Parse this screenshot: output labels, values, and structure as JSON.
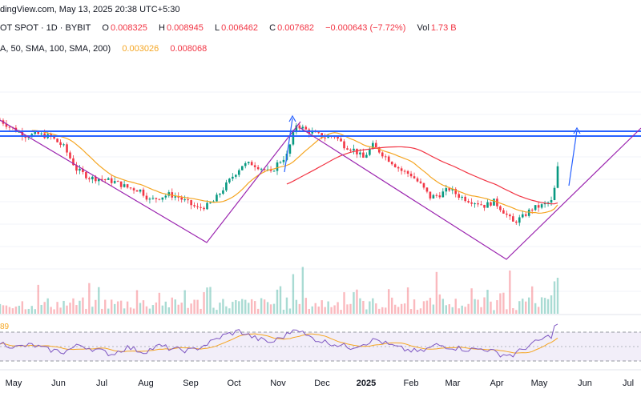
{
  "header": {
    "line1": "dingView.com, May 13, 2025 20:38 UTC+5:30",
    "symbol": "OT SPOT · 1D · BYBIT",
    "o_label": "O",
    "o_value": "0.008325",
    "h_label": "H",
    "h_value": "0.008945",
    "l_label": "L",
    "l_value": "0.006462",
    "c_label": "C",
    "c_value": "0.007682",
    "change": "−0.000643 (−7.72%)",
    "vol_label": "Vol",
    "vol_value": "1.73 B",
    "ma_params": "A, 50, SMA, 100, SMA, 200)",
    "ma1_value": "0.003026",
    "ma2_value": "0.008068"
  },
  "rsi": {
    "label": "89"
  },
  "colors": {
    "up": "#089981",
    "down": "#f23645",
    "ma50": "#f5a623",
    "ma200": "#f23645",
    "resistance": "#2962ff",
    "trendline": "#9c27b0",
    "rsi": "#7e57c2",
    "rsi_ma": "#f5a623"
  },
  "chart_data": {
    "type": "candlestick",
    "x": [
      "May",
      "Jun",
      "Jul",
      "Aug",
      "Sep",
      "Oct",
      "Nov",
      "Dec",
      "2025",
      "Feb",
      "Mar",
      "Apr",
      "May",
      "Jun",
      "Jul"
    ],
    "bold_ticks": [
      "2025"
    ],
    "ohlc": {
      "O": 0.008325,
      "H": 0.008945,
      "L": 0.006462,
      "C": 0.007682,
      "change": -0.000643,
      "change_pct": -7.72
    },
    "series": [
      {
        "name": "SMA 100",
        "last": 0.003026
      },
      {
        "name": "SMA 200",
        "last": 0.008068
      }
    ],
    "close_path": [
      [
        0,
        0.97
      ],
      [
        4,
        0.91
      ],
      [
        8,
        0.86
      ],
      [
        12,
        0.87
      ],
      [
        16,
        0.85
      ],
      [
        20,
        0.78
      ],
      [
        24,
        0.62
      ],
      [
        28,
        0.56
      ],
      [
        32,
        0.55
      ],
      [
        36,
        0.53
      ],
      [
        40,
        0.49
      ],
      [
        44,
        0.47
      ],
      [
        47,
        0.4
      ],
      [
        50,
        0.42
      ],
      [
        53,
        0.44
      ],
      [
        56,
        0.42
      ],
      [
        59,
        0.38
      ],
      [
        62,
        0.34
      ],
      [
        65,
        0.36
      ],
      [
        67,
        0.39
      ],
      [
        70,
        0.48
      ],
      [
        73,
        0.57
      ],
      [
        76,
        0.65
      ],
      [
        79,
        0.66
      ],
      [
        82,
        0.63
      ],
      [
        85,
        0.59
      ],
      [
        87,
        0.66
      ],
      [
        90,
        0.72
      ],
      [
        93,
        0.94
      ],
      [
        96,
        0.9
      ],
      [
        99,
        0.87
      ],
      [
        102,
        0.85
      ],
      [
        105,
        0.86
      ],
      [
        108,
        0.79
      ],
      [
        111,
        0.76
      ],
      [
        114,
        0.7
      ],
      [
        117,
        0.79
      ],
      [
        120,
        0.73
      ],
      [
        123,
        0.67
      ],
      [
        126,
        0.61
      ],
      [
        129,
        0.58
      ],
      [
        132,
        0.51
      ],
      [
        135,
        0.42
      ],
      [
        138,
        0.44
      ],
      [
        141,
        0.48
      ],
      [
        144,
        0.43
      ],
      [
        147,
        0.4
      ],
      [
        150,
        0.38
      ],
      [
        152,
        0.36
      ],
      [
        155,
        0.39
      ],
      [
        158,
        0.32
      ],
      [
        161,
        0.24
      ],
      [
        164,
        0.28
      ],
      [
        167,
        0.34
      ],
      [
        170,
        0.36
      ],
      [
        173,
        0.39
      ],
      [
        174,
        0.48
      ],
      [
        175,
        0.63
      ]
    ],
    "volume_spikes": [
      [
        92,
        0.55
      ],
      [
        95,
        0.65
      ],
      [
        137,
        0.58
      ],
      [
        160,
        0.6
      ],
      [
        174,
        0.45
      ],
      [
        175,
        0.5
      ]
    ],
    "rsi_path": [
      [
        0,
        0.55
      ],
      [
        5,
        0.45
      ],
      [
        10,
        0.5
      ],
      [
        15,
        0.4
      ],
      [
        20,
        0.35
      ],
      [
        25,
        0.5
      ],
      [
        30,
        0.4
      ],
      [
        35,
        0.3
      ],
      [
        40,
        0.45
      ],
      [
        45,
        0.35
      ],
      [
        50,
        0.48
      ],
      [
        55,
        0.4
      ],
      [
        60,
        0.38
      ],
      [
        65,
        0.52
      ],
      [
        70,
        0.7
      ],
      [
        75,
        0.8
      ],
      [
        80,
        0.65
      ],
      [
        85,
        0.55
      ],
      [
        90,
        0.72
      ],
      [
        93,
        0.88
      ],
      [
        96,
        0.7
      ],
      [
        100,
        0.6
      ],
      [
        105,
        0.52
      ],
      [
        110,
        0.45
      ],
      [
        115,
        0.55
      ],
      [
        118,
        0.62
      ],
      [
        122,
        0.5
      ],
      [
        127,
        0.4
      ],
      [
        132,
        0.35
      ],
      [
        137,
        0.5
      ],
      [
        142,
        0.45
      ],
      [
        147,
        0.4
      ],
      [
        152,
        0.42
      ],
      [
        157,
        0.3
      ],
      [
        161,
        0.28
      ],
      [
        165,
        0.45
      ],
      [
        170,
        0.62
      ],
      [
        173,
        0.7
      ],
      [
        174,
        0.88
      ],
      [
        175,
        0.96
      ]
    ]
  }
}
